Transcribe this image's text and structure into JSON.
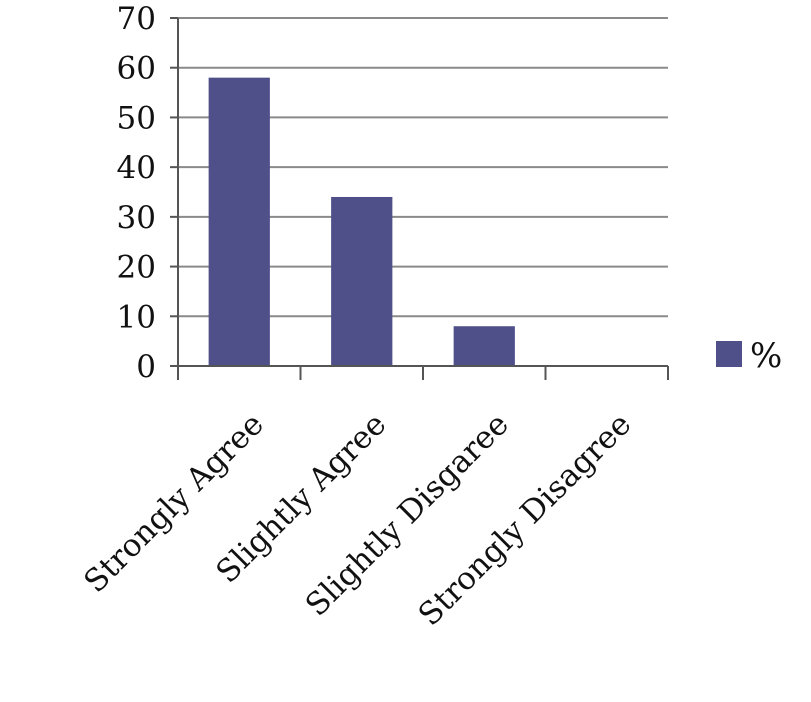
{
  "chart_data": {
    "type": "bar",
    "categories": [
      "Strongly Agree",
      "Slightly Agree",
      "Slightly Disgaree",
      "Strongly Disagree"
    ],
    "series": [
      {
        "name": "%",
        "values": [
          58,
          34,
          8,
          0
        ]
      }
    ],
    "ylim": [
      0,
      70
    ],
    "yticks": [
      0,
      10,
      20,
      30,
      40,
      50,
      60,
      70
    ],
    "grid": true,
    "legend_position": "right",
    "colors": {
      "bar": "#4f4f8a",
      "grid": "#8a8a8a",
      "axis": "#555555"
    }
  }
}
